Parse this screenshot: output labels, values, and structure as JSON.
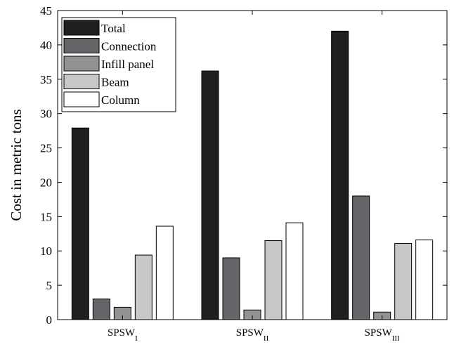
{
  "chart_data": {
    "type": "bar",
    "title": "",
    "xlabel": "",
    "ylabel": "Cost in metric tons",
    "ylim": [
      0,
      45
    ],
    "yticks": [
      0,
      5,
      10,
      15,
      20,
      25,
      30,
      35,
      40,
      45
    ],
    "grid": false,
    "legend_position": "top-left",
    "categories": [
      {
        "base": "SPSW",
        "sub": "I"
      },
      {
        "base": "SPSW",
        "sub": "II"
      },
      {
        "base": "SPSW",
        "sub": "III"
      }
    ],
    "series": [
      {
        "name": "Total",
        "color": "#1f1f1f",
        "values": [
          27.9,
          36.2,
          42.0
        ]
      },
      {
        "name": "Connection",
        "color": "#646569",
        "values": [
          3.0,
          9.0,
          18.0
        ]
      },
      {
        "name": "Infill panel",
        "color": "#939393",
        "values": [
          1.8,
          1.4,
          1.1
        ]
      },
      {
        "name": "Beam",
        "color": "#c8c8c8",
        "values": [
          9.4,
          11.5,
          11.1
        ]
      },
      {
        "name": "Column",
        "color": "#ffffff",
        "values": [
          13.6,
          14.1,
          11.6
        ]
      }
    ]
  }
}
